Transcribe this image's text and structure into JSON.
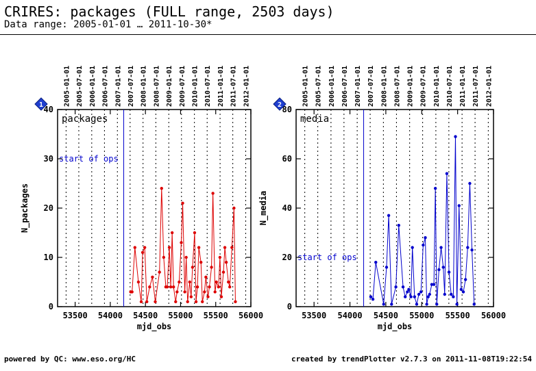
{
  "header": {
    "title": "CRIRES: packages (FULL range, 2503 days)",
    "subtitle": "Data range: 2005-01-01 … 2011-10-30*"
  },
  "footer": {
    "left": "powered by QC: www.eso.org/HC",
    "right": "created by trendPlotter v2.7.3 on 2011-11-08T19:22:54"
  },
  "chart_data": [
    {
      "type": "line",
      "panel_index": "1",
      "panel_label": "packages",
      "xlabel": "mjd_obs",
      "ylabel": "N_packages",
      "xlim": [
        53250,
        56000
      ],
      "ylim": [
        0,
        40
      ],
      "x_ticks": [
        53500,
        54000,
        54500,
        55000,
        55500,
        56000
      ],
      "y_ticks": [
        0,
        10,
        20,
        30,
        40
      ],
      "date_ticks": [
        "2005-01-01",
        "2005-07-01",
        "2006-01-01",
        "2006-07-01",
        "2007-01-01",
        "2007-07-01",
        "2008-01-01",
        "2008-07-01",
        "2009-01-01",
        "2009-07-01",
        "2010-01-01",
        "2010-07-01",
        "2011-01-01",
        "2011-07-01",
        "2012-01-01"
      ],
      "date_tick_mjd": [
        53371,
        53552,
        53736,
        53917,
        54101,
        54282,
        54466,
        54648,
        54832,
        55013,
        55197,
        55378,
        55562,
        55743,
        55927
      ],
      "marker": {
        "label": "start of ops",
        "x": 54191,
        "y": 30
      },
      "series": [
        {
          "color": "#dd0000",
          "points": [
            [
              54290,
              3
            ],
            [
              54310,
              3
            ],
            [
              54350,
              12
            ],
            [
              54400,
              5
            ],
            [
              54440,
              1
            ],
            [
              54460,
              11
            ],
            [
              54490,
              12
            ],
            [
              54520,
              1
            ],
            [
              54560,
              4
            ],
            [
              54600,
              6
            ],
            [
              54640,
              1
            ],
            [
              54700,
              7
            ],
            [
              54730,
              24
            ],
            [
              54760,
              10
            ],
            [
              54790,
              4
            ],
            [
              54810,
              4
            ],
            [
              54840,
              12
            ],
            [
              54860,
              4
            ],
            [
              54880,
              15
            ],
            [
              54900,
              4
            ],
            [
              54930,
              1
            ],
            [
              54950,
              3
            ],
            [
              54980,
              5
            ],
            [
              55010,
              13
            ],
            [
              55030,
              21
            ],
            [
              55060,
              3
            ],
            [
              55080,
              10
            ],
            [
              55100,
              1
            ],
            [
              55130,
              5
            ],
            [
              55150,
              2
            ],
            [
              55170,
              8
            ],
            [
              55200,
              15
            ],
            [
              55220,
              1
            ],
            [
              55240,
              4
            ],
            [
              55260,
              12
            ],
            [
              55290,
              9
            ],
            [
              55310,
              1
            ],
            [
              55340,
              3
            ],
            [
              55360,
              6
            ],
            [
              55390,
              2
            ],
            [
              55410,
              4
            ],
            [
              55440,
              8
            ],
            [
              55460,
              23
            ],
            [
              55490,
              3
            ],
            [
              55510,
              5
            ],
            [
              55540,
              4
            ],
            [
              55560,
              10
            ],
            [
              55580,
              2
            ],
            [
              55610,
              7
            ],
            [
              55630,
              12
            ],
            [
              55650,
              9
            ],
            [
              55680,
              5
            ],
            [
              55700,
              4
            ],
            [
              55730,
              12
            ],
            [
              55760,
              20
            ],
            [
              55780,
              1
            ]
          ]
        }
      ]
    },
    {
      "type": "line",
      "panel_index": "2",
      "panel_label": "media",
      "xlabel": "mjd_obs",
      "ylabel": "N_media",
      "xlim": [
        53250,
        56000
      ],
      "ylim": [
        0,
        80
      ],
      "x_ticks": [
        53500,
        54000,
        54500,
        55000,
        55500,
        56000
      ],
      "y_ticks": [
        0,
        20,
        40,
        60,
        80
      ],
      "date_ticks": [
        "2005-01-01",
        "2005-07-01",
        "2006-01-01",
        "2006-07-01",
        "2007-01-01",
        "2007-07-01",
        "2008-01-01",
        "2008-07-01",
        "2009-01-01",
        "2009-07-01",
        "2010-01-01",
        "2010-07-01",
        "2011-01-01",
        "2011-07-01",
        "2012-01-01"
      ],
      "date_tick_mjd": [
        53371,
        53552,
        53736,
        53917,
        54101,
        54282,
        54466,
        54648,
        54832,
        55013,
        55197,
        55378,
        55562,
        55743,
        55927
      ],
      "marker": {
        "label": "start of ops",
        "x": 54191,
        "y": 20
      },
      "series": [
        {
          "color": "#0000cc",
          "points": [
            [
              54290,
              4
            ],
            [
              54320,
              3
            ],
            [
              54360,
              18
            ],
            [
              54470,
              1
            ],
            [
              54510,
              16
            ],
            [
              54540,
              37
            ],
            [
              54580,
              1
            ],
            [
              54640,
              8
            ],
            [
              54680,
              33
            ],
            [
              54740,
              8
            ],
            [
              54770,
              4
            ],
            [
              54800,
              6
            ],
            [
              54820,
              7
            ],
            [
              54850,
              4
            ],
            [
              54870,
              24
            ],
            [
              54900,
              4
            ],
            [
              54930,
              1
            ],
            [
              54960,
              5
            ],
            [
              54990,
              6
            ],
            [
              55020,
              25
            ],
            [
              55050,
              28
            ],
            [
              55070,
              1
            ],
            [
              55090,
              4
            ],
            [
              55110,
              5
            ],
            [
              55140,
              9
            ],
            [
              55170,
              9
            ],
            [
              55190,
              48
            ],
            [
              55210,
              1
            ],
            [
              55240,
              15
            ],
            [
              55270,
              24
            ],
            [
              55300,
              16
            ],
            [
              55320,
              5
            ],
            [
              55350,
              54
            ],
            [
              55380,
              14
            ],
            [
              55410,
              5
            ],
            [
              55440,
              4
            ],
            [
              55470,
              69
            ],
            [
              55490,
              1
            ],
            [
              55520,
              41
            ],
            [
              55550,
              7
            ],
            [
              55580,
              6
            ],
            [
              55610,
              11
            ],
            [
              55640,
              24
            ],
            [
              55670,
              50
            ],
            [
              55700,
              23
            ],
            [
              55730,
              1
            ]
          ]
        }
      ]
    }
  ]
}
